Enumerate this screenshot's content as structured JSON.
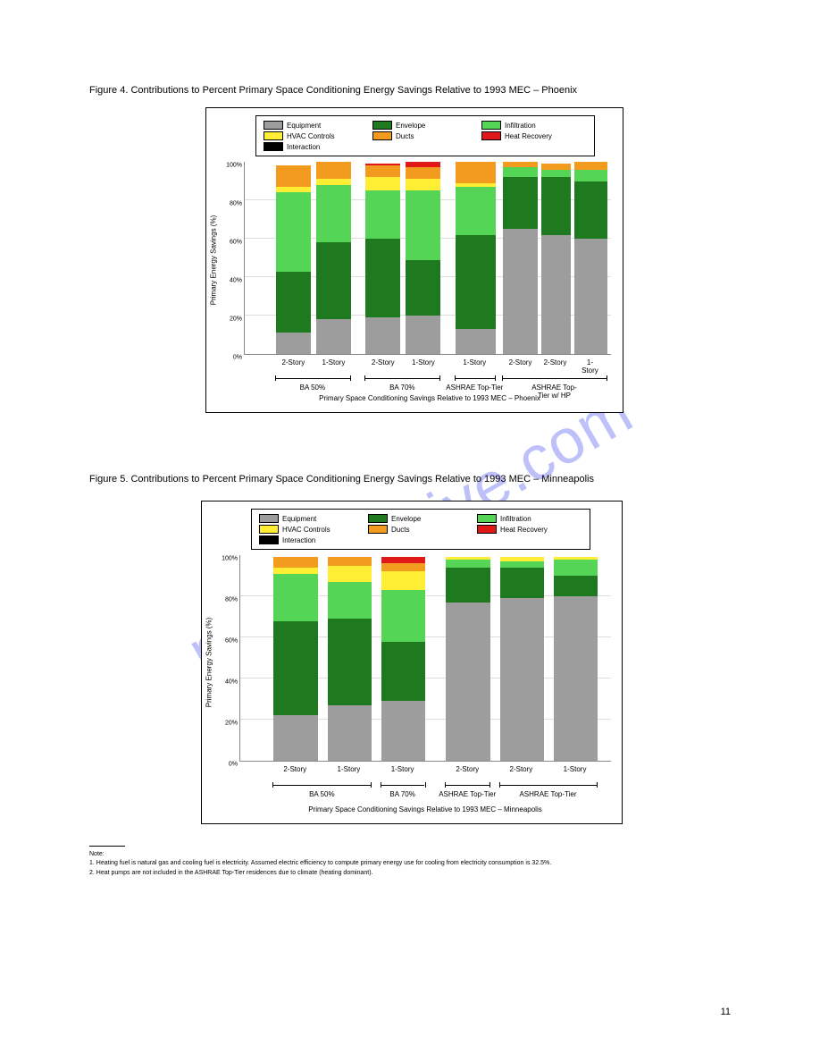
{
  "watermark": "manualshive.com",
  "page_number": "11",
  "colors": {
    "neutral": "#9d9d9d",
    "green1": "#1f7a1f",
    "green2": "#55d555",
    "yellow": "#ffee33",
    "orange": "#f39b1f",
    "red": "#e01818",
    "black": "#000000",
    "border": "#000000",
    "background": "#ffffff"
  },
  "footnote": {
    "label": "Note:",
    "line1": "1.  Heating fuel is natural gas and cooling fuel is electricity.  Assumed electric efficiency to compute primary energy use for cooling from electricity consumption is 32.5%.",
    "line2": "2.  Heat pumps are not included in the ASHRAE Top-Tier residences due to climate (heating dominant)."
  },
  "chart1": {
    "title": "Figure 4.  Contributions to Percent Primary Space Conditioning Energy Savings Relative to 1993 MEC – Phoenix",
    "caption": "Primary Space Conditioning Savings Relative to 1993 MEC – Phoenix",
    "ylabel": "Primary Energy Savings (%)",
    "ymax": 100,
    "ytick_step": 20,
    "legend": [
      {
        "label": "Equipment",
        "color": "#9d9d9d"
      },
      {
        "label": "Envelope",
        "color": "#1f7a1f"
      },
      {
        "label": "Infiltration",
        "color": "#55d555"
      },
      {
        "label": "HVAC Controls",
        "color": "#ffee33"
      },
      {
        "label": "Ducts",
        "color": "#f39b1f"
      },
      {
        "label": "Heat Recovery",
        "color": "#e01818"
      },
      {
        "label": "Interaction",
        "color": "#000000"
      }
    ],
    "bars": [
      {
        "x": 0.085,
        "w": 0.095,
        "seg": [
          {
            "c": "#9d9d9d",
            "v": 11
          },
          {
            "c": "#1f7a1f",
            "v": 32
          },
          {
            "c": "#55d555",
            "v": 41
          },
          {
            "c": "#ffee33",
            "v": 3
          },
          {
            "c": "#f39b1f",
            "v": 11
          }
        ]
      },
      {
        "x": 0.195,
        "w": 0.095,
        "seg": [
          {
            "c": "#9d9d9d",
            "v": 18
          },
          {
            "c": "#1f7a1f",
            "v": 40
          },
          {
            "c": "#55d555",
            "v": 30
          },
          {
            "c": "#ffee33",
            "v": 3
          },
          {
            "c": "#f39b1f",
            "v": 9
          }
        ]
      },
      {
        "x": 0.33,
        "w": 0.095,
        "seg": [
          {
            "c": "#9d9d9d",
            "v": 19
          },
          {
            "c": "#1f7a1f",
            "v": 41
          },
          {
            "c": "#55d555",
            "v": 25
          },
          {
            "c": "#ffee33",
            "v": 7
          },
          {
            "c": "#f39b1f",
            "v": 6
          },
          {
            "c": "#e01818",
            "v": 1
          }
        ]
      },
      {
        "x": 0.44,
        "w": 0.095,
        "seg": [
          {
            "c": "#9d9d9d",
            "v": 20
          },
          {
            "c": "#1f7a1f",
            "v": 29
          },
          {
            "c": "#55d555",
            "v": 36
          },
          {
            "c": "#ffee33",
            "v": 6
          },
          {
            "c": "#f39b1f",
            "v": 6
          },
          {
            "c": "#e01818",
            "v": 3
          }
        ]
      },
      {
        "x": 0.575,
        "w": 0.11,
        "seg": [
          {
            "c": "#9d9d9d",
            "v": 13
          },
          {
            "c": "#1f7a1f",
            "v": 49
          },
          {
            "c": "#55d555",
            "v": 25
          },
          {
            "c": "#ffee33",
            "v": 2
          },
          {
            "c": "#f39b1f",
            "v": 11
          }
        ]
      },
      {
        "x": 0.705,
        "w": 0.095,
        "seg": [
          {
            "c": "#9d9d9d",
            "v": 65
          },
          {
            "c": "#1f7a1f",
            "v": 27
          },
          {
            "c": "#55d555",
            "v": 5
          },
          {
            "c": "#f39b1f",
            "v": 3
          }
        ]
      },
      {
        "x": 0.81,
        "w": 0.08,
        "seg": [
          {
            "c": "#9d9d9d",
            "v": 62
          },
          {
            "c": "#1f7a1f",
            "v": 30
          },
          {
            "c": "#55d555",
            "v": 4
          },
          {
            "c": "#f39b1f",
            "v": 3
          }
        ]
      },
      {
        "x": 0.9,
        "w": 0.09,
        "seg": [
          {
            "c": "#9d9d9d",
            "v": 60
          },
          {
            "c": "#1f7a1f",
            "v": 30
          },
          {
            "c": "#55d555",
            "v": 6
          },
          {
            "c": "#f39b1f",
            "v": 4
          }
        ]
      }
    ],
    "xgroups": [
      {
        "label": "BA 50%",
        "from": 0.085,
        "to": 0.29,
        "y": 0
      },
      {
        "label": "BA 70%",
        "from": 0.33,
        "to": 0.535,
        "y": 0
      },
      {
        "label": "ASHRAE Top-Tier",
        "from": 0.575,
        "to": 0.685,
        "y": 0
      },
      {
        "label": "ASHRAE Top-Tier w/ HP",
        "from": 0.705,
        "to": 0.99,
        "y": 0
      }
    ],
    "xlabels": [
      {
        "label": "2-Story",
        "x": 0.135
      },
      {
        "label": "1-Story",
        "x": 0.245
      },
      {
        "label": "2-Story",
        "x": 0.38
      },
      {
        "label": "1-Story",
        "x": 0.49
      },
      {
        "label": "1-Story",
        "x": 0.63
      },
      {
        "label": "2-Story",
        "x": 0.755
      },
      {
        "label": "2-Story",
        "x": 0.85
      },
      {
        "label": "1-Story",
        "x": 0.945
      }
    ]
  },
  "chart2": {
    "title": "Figure 5.  Contributions to Percent Primary Space Conditioning Energy Savings Relative to 1993 MEC – Minneapolis",
    "caption": "Primary Space Conditioning Savings Relative to 1993 MEC – Minneapolis",
    "ylabel": "Primary Energy Savings (%)",
    "ymax": 100,
    "ytick_step": 20,
    "legend": [
      {
        "label": "Equipment",
        "color": "#9d9d9d"
      },
      {
        "label": "Envelope",
        "color": "#1f7a1f"
      },
      {
        "label": "Infiltration",
        "color": "#55d555"
      },
      {
        "label": "HVAC Controls",
        "color": "#ffee33"
      },
      {
        "label": "Ducts",
        "color": "#f39b1f"
      },
      {
        "label": "Heat Recovery",
        "color": "#e01818"
      },
      {
        "label": "Interaction",
        "color": "#000000"
      }
    ],
    "bars": [
      {
        "x": 0.09,
        "w": 0.12,
        "seg": [
          {
            "c": "#9d9d9d",
            "v": 22
          },
          {
            "c": "#1f7a1f",
            "v": 46
          },
          {
            "c": "#55d555",
            "v": 23
          },
          {
            "c": "#ffee33",
            "v": 3
          },
          {
            "c": "#f39b1f",
            "v": 5
          }
        ]
      },
      {
        "x": 0.235,
        "w": 0.12,
        "seg": [
          {
            "c": "#9d9d9d",
            "v": 27
          },
          {
            "c": "#1f7a1f",
            "v": 42
          },
          {
            "c": "#55d555",
            "v": 18
          },
          {
            "c": "#ffee33",
            "v": 8
          },
          {
            "c": "#f39b1f",
            "v": 4
          }
        ]
      },
      {
        "x": 0.38,
        "w": 0.12,
        "seg": [
          {
            "c": "#9d9d9d",
            "v": 29
          },
          {
            "c": "#1f7a1f",
            "v": 29
          },
          {
            "c": "#55d555",
            "v": 25
          },
          {
            "c": "#ffee33",
            "v": 9
          },
          {
            "c": "#f39b1f",
            "v": 4
          },
          {
            "c": "#e01818",
            "v": 3
          }
        ]
      },
      {
        "x": 0.555,
        "w": 0.12,
        "seg": [
          {
            "c": "#9d9d9d",
            "v": 77
          },
          {
            "c": "#1f7a1f",
            "v": 17
          },
          {
            "c": "#55d555",
            "v": 4
          },
          {
            "c": "#ffee33",
            "v": 1
          }
        ]
      },
      {
        "x": 0.7,
        "w": 0.12,
        "seg": [
          {
            "c": "#9d9d9d",
            "v": 79
          },
          {
            "c": "#1f7a1f",
            "v": 15
          },
          {
            "c": "#55d555",
            "v": 3
          },
          {
            "c": "#ffee33",
            "v": 2
          }
        ]
      },
      {
        "x": 0.845,
        "w": 0.12,
        "seg": [
          {
            "c": "#9d9d9d",
            "v": 80
          },
          {
            "c": "#1f7a1f",
            "v": 10
          },
          {
            "c": "#55d555",
            "v": 8
          },
          {
            "c": "#ffee33",
            "v": 1
          }
        ]
      }
    ],
    "xgroups": [
      {
        "label": "BA 50%",
        "from": 0.09,
        "to": 0.355,
        "y": 0
      },
      {
        "label": "BA 70%",
        "from": 0.38,
        "to": 0.5,
        "y": 0
      },
      {
        "label": "ASHRAE Top-Tier",
        "from": 0.555,
        "to": 0.675,
        "y": 0
      },
      {
        "label": "ASHRAE Top-Tier",
        "from": 0.7,
        "to": 0.965,
        "y": 0
      }
    ],
    "xlabels": [
      {
        "label": "2-Story",
        "x": 0.15
      },
      {
        "label": "1-Story",
        "x": 0.295
      },
      {
        "label": "1-Story",
        "x": 0.44
      },
      {
        "label": "2-Story",
        "x": 0.615
      },
      {
        "label": "2-Story",
        "x": 0.76
      },
      {
        "label": "1-Story",
        "x": 0.905
      }
    ]
  }
}
